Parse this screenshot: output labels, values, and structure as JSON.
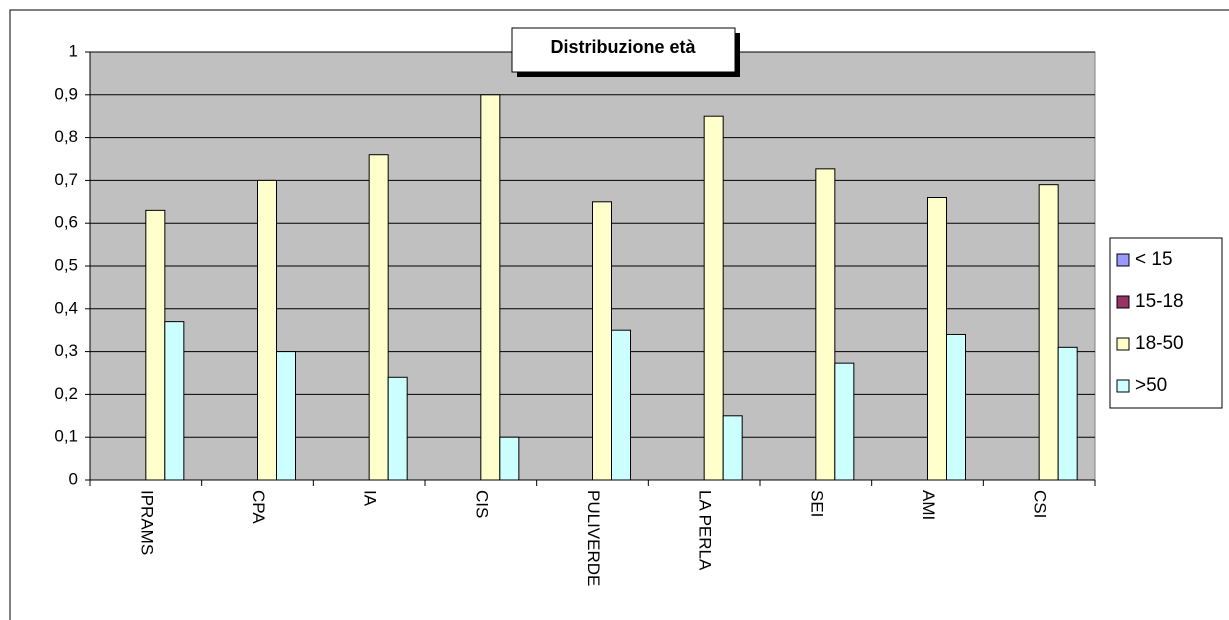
{
  "chart_data": {
    "type": "bar",
    "title": "Distribuzione età",
    "categories": [
      "IPRAMS",
      "CPA",
      "IA",
      "CIS",
      "PULIVERDE",
      "LA PERLA",
      "SEI",
      "AMI",
      "CSI"
    ],
    "series": [
      {
        "name": "< 15",
        "color": "#9999ff",
        "values": [
          0,
          0,
          0,
          0,
          0,
          0,
          0,
          0,
          0
        ]
      },
      {
        "name": "15-18",
        "color": "#993366",
        "values": [
          0,
          0,
          0,
          0,
          0,
          0,
          0,
          0,
          0
        ]
      },
      {
        "name": "18-50",
        "color": "#ffffcc",
        "values": [
          0.63,
          0.7,
          0.76,
          0.9,
          0.65,
          0.85,
          0.727,
          0.66,
          0.69
        ]
      },
      {
        "name": ">50",
        "color": "#ccffff",
        "values": [
          0.37,
          0.3,
          0.24,
          0.1,
          0.35,
          0.15,
          0.273,
          0.34,
          0.31
        ]
      }
    ],
    "ylim": [
      0,
      1
    ],
    "yticks": [
      0,
      {
        "value": 0.1,
        "label": "0,1"
      },
      {
        "value": 0.2,
        "label": "0,2"
      },
      {
        "value": 0.3,
        "label": "0,3"
      },
      {
        "value": 0.4,
        "label": "0,4"
      },
      {
        "value": 0.5,
        "label": "0,5"
      },
      {
        "value": 0.6,
        "label": "0,6"
      },
      {
        "value": 0.7,
        "label": "0,7"
      },
      {
        "value": 0.8,
        "label": "0,8"
      },
      {
        "value": 0.9,
        "label": "0,9"
      },
      1
    ],
    "grid": true,
    "legend": "right",
    "background": "#c0c0c0"
  }
}
